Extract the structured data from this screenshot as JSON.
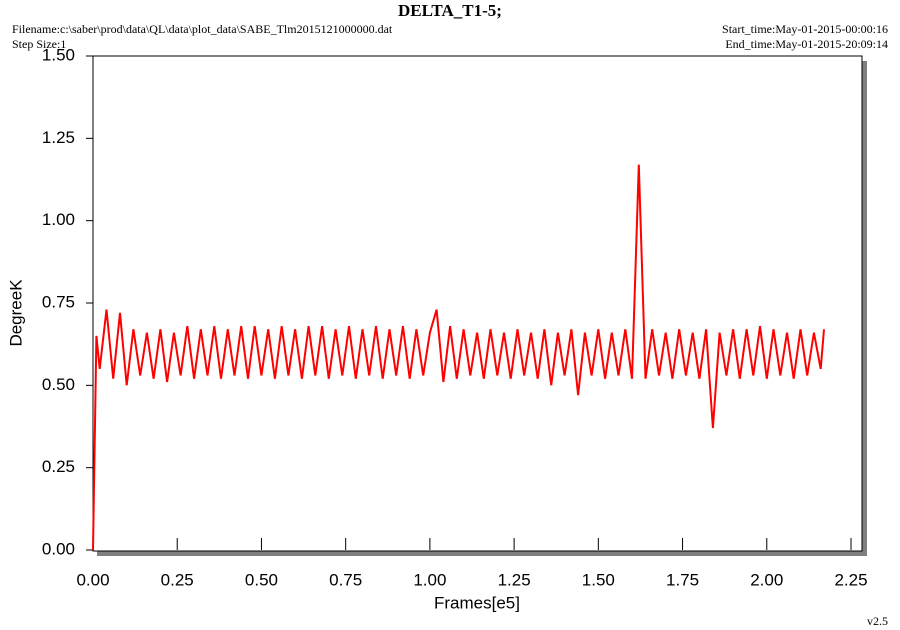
{
  "chart_data": {
    "type": "line",
    "title": "DELTA_T1-5;",
    "filename": "Filename:c:\\saber\\prod\\data\\QL\\data\\plot_data\\SABE_Tlm2015121000000.dat",
    "step_size": "Step Size:1",
    "start_time": "Start_time:May-01-2015-00:00:16",
    "end_time": "End_time:May-01-2015-20:09:14",
    "version": "v2.5",
    "x_label": "Frames[e5]",
    "y_label": "DegreeK",
    "x": [
      0,
      0.01,
      0.02,
      0.04,
      0.06,
      0.08,
      0.1,
      0.12,
      0.14,
      0.16,
      0.18,
      0.2,
      0.22,
      0.24,
      0.26,
      0.28,
      0.3,
      0.32,
      0.34,
      0.36,
      0.38,
      0.4,
      0.42,
      0.44,
      0.46,
      0.48,
      0.5,
      0.52,
      0.54,
      0.56,
      0.58,
      0.6,
      0.62,
      0.64,
      0.66,
      0.68,
      0.7,
      0.72,
      0.74,
      0.76,
      0.78,
      0.8,
      0.82,
      0.84,
      0.86,
      0.88,
      0.9,
      0.92,
      0.94,
      0.96,
      0.98,
      1.0,
      1.02,
      1.04,
      1.06,
      1.08,
      1.1,
      1.12,
      1.14,
      1.16,
      1.18,
      1.2,
      1.22,
      1.24,
      1.26,
      1.28,
      1.3,
      1.32,
      1.34,
      1.36,
      1.38,
      1.4,
      1.42,
      1.44,
      1.46,
      1.48,
      1.5,
      1.52,
      1.54,
      1.56,
      1.58,
      1.6,
      1.62,
      1.64,
      1.66,
      1.68,
      1.7,
      1.72,
      1.74,
      1.76,
      1.78,
      1.8,
      1.82,
      1.84,
      1.86,
      1.88,
      1.9,
      1.92,
      1.94,
      1.96,
      1.98,
      2.0,
      2.02,
      2.04,
      2.06,
      2.08,
      2.1,
      2.12,
      2.14,
      2.16,
      2.17
    ],
    "series": [
      {
        "color": "#ff0000",
        "values": [
          0,
          0.65,
          0.55,
          0.73,
          0.52,
          0.72,
          0.5,
          0.67,
          0.53,
          0.66,
          0.52,
          0.67,
          0.51,
          0.66,
          0.53,
          0.68,
          0.52,
          0.67,
          0.53,
          0.68,
          0.52,
          0.67,
          0.53,
          0.68,
          0.52,
          0.68,
          0.53,
          0.67,
          0.52,
          0.68,
          0.53,
          0.67,
          0.52,
          0.68,
          0.53,
          0.68,
          0.52,
          0.67,
          0.53,
          0.68,
          0.52,
          0.67,
          0.53,
          0.68,
          0.52,
          0.67,
          0.53,
          0.68,
          0.52,
          0.67,
          0.53,
          0.66,
          0.73,
          0.51,
          0.68,
          0.52,
          0.67,
          0.53,
          0.66,
          0.52,
          0.67,
          0.53,
          0.66,
          0.52,
          0.67,
          0.53,
          0.66,
          0.52,
          0.67,
          0.5,
          0.66,
          0.53,
          0.67,
          0.47,
          0.66,
          0.53,
          0.67,
          0.52,
          0.66,
          0.53,
          0.67,
          0.52,
          1.17,
          0.52,
          0.67,
          0.53,
          0.66,
          0.52,
          0.67,
          0.53,
          0.66,
          0.52,
          0.67,
          0.37,
          0.66,
          0.53,
          0.67,
          0.52,
          0.67,
          0.53,
          0.68,
          0.52,
          0.67,
          0.53,
          0.66,
          0.52,
          0.67,
          0.53,
          0.66,
          0.55,
          0.67
        ]
      }
    ],
    "xlim": [
      0,
      2.25
    ],
    "ylim": [
      0,
      1.5
    ],
    "xticks": [
      {
        "value": 0,
        "label": "0.00"
      },
      {
        "value": 0.25,
        "label": "0.25"
      },
      {
        "value": 0.5,
        "label": "0.50"
      },
      {
        "value": 0.75,
        "label": "0.75"
      },
      {
        "value": 1,
        "label": "1.00"
      },
      {
        "value": 1.25,
        "label": "1.25"
      },
      {
        "value": 1.5,
        "label": "1.50"
      },
      {
        "value": 1.75,
        "label": "1.75"
      },
      {
        "value": 2,
        "label": "2.00"
      },
      {
        "value": 2.25,
        "label": "2.25"
      }
    ],
    "yticks": [
      {
        "value": 0,
        "label": "0.00"
      },
      {
        "value": 0.25,
        "label": "0.25"
      },
      {
        "value": 0.5,
        "label": "0.50"
      },
      {
        "value": 0.75,
        "label": "0.75"
      },
      {
        "value": 1,
        "label": "1.00"
      },
      {
        "value": 1.25,
        "label": "1.25"
      },
      {
        "value": 1.5,
        "label": "1.50"
      }
    ]
  }
}
